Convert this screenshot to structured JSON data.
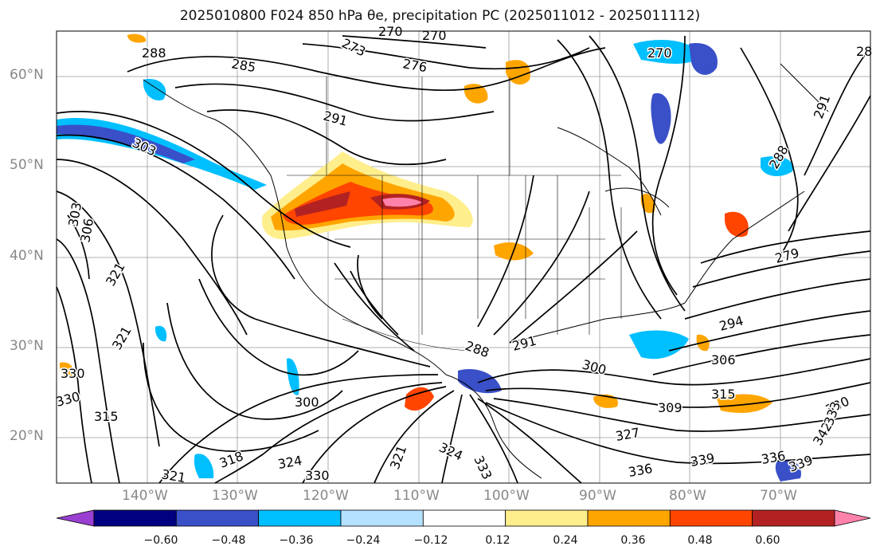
{
  "title": "2025010800 F024 850 hPa θe, precipitation PC (2025011012 - 2025011112)",
  "lat_labels": [
    "60°N",
    "50°N",
    "40°N",
    "30°N",
    "20°N"
  ],
  "lon_labels": [
    "140°W",
    "130°W",
    "120°W",
    "110°W",
    "100°W",
    "90°W",
    "80°W",
    "70°W"
  ],
  "colorbar": {
    "ticks": [
      "−0.60",
      "−0.48",
      "−0.36",
      "−0.24",
      "−0.12",
      "0.12",
      "0.24",
      "0.36",
      "0.48",
      "0.60"
    ],
    "colors": [
      "#9a3fd1",
      "#000080",
      "#3a50c8",
      "#00bfff",
      "#b4e1ff",
      "#ffffff",
      "#ffee8c",
      "#ffa500",
      "#ff4500",
      "#b22222",
      "#ff82ab"
    ]
  },
  "contour_labels": [
    "288",
    "285",
    "273",
    "270",
    "270",
    "276",
    "291",
    "303",
    "306",
    "303",
    "321",
    "321",
    "300",
    "288",
    "291",
    "300",
    "294",
    "279",
    "306",
    "315",
    "309",
    "330",
    "327",
    "324",
    "333",
    "321",
    "336",
    "339",
    "336",
    "339",
    "342",
    "333",
    "330",
    "318",
    "321",
    "324",
    "330",
    "315",
    "330",
    "270",
    "288",
    "291",
    "28"
  ],
  "colors": {
    "positive_anomaly": "#ff4500",
    "negative_anomaly": "#00bfff"
  }
}
